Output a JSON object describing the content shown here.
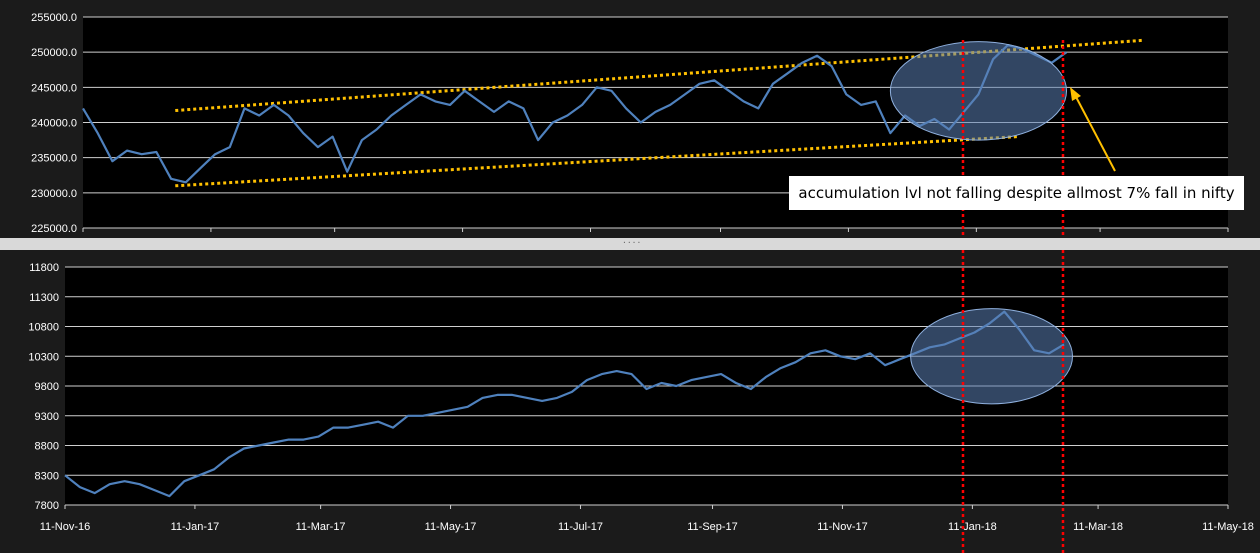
{
  "annotation": {
    "text": "accumulation lvl not falling despite  allmost 7% fall in nifty"
  },
  "splitter": {
    "grip": "····"
  },
  "colors": {
    "background": "#1b1b1b",
    "plot_bg": "#000000",
    "series_line": "#4f81bd",
    "trendline": "#ffc000",
    "marker_line": "#ff0000",
    "highlight": "#5b7fb5",
    "axis_text": "#ffffff"
  },
  "chart_data": [
    {
      "type": "line",
      "title": "",
      "xlabel": "",
      "ylabel": "",
      "x_ticks": [
        "11-Nov-16",
        "11-Jan-17",
        "11-Mar-17",
        "11-May-17",
        "11-Jul-17",
        "11-Sep-17",
        "11-Nov-17",
        "11-Jan-18",
        "11-Mar-18",
        "11-May-18"
      ],
      "y_ticks": [
        "225000.0",
        "230000.0",
        "235000.0",
        "240000.0",
        "245000.0",
        "250000.0",
        "255000.0"
      ],
      "ylim": [
        225000,
        255000
      ],
      "grid": "horizontal",
      "series": [
        {
          "x": [
            "2016-11-11",
            "2016-11-18",
            "2016-11-25",
            "2016-12-02",
            "2016-12-09",
            "2016-12-16",
            "2016-12-23",
            "2016-12-30",
            "2017-01-06",
            "2017-01-13",
            "2017-01-20",
            "2017-01-27",
            "2017-02-03",
            "2017-02-10",
            "2017-02-17",
            "2017-02-24",
            "2017-03-03",
            "2017-03-10",
            "2017-03-17",
            "2017-03-24",
            "2017-03-31",
            "2017-04-07",
            "2017-04-14",
            "2017-04-21",
            "2017-04-28",
            "2017-05-05",
            "2017-05-12",
            "2017-05-19",
            "2017-05-26",
            "2017-06-02",
            "2017-06-09",
            "2017-06-16",
            "2017-06-23",
            "2017-06-30",
            "2017-07-07",
            "2017-07-14",
            "2017-07-21",
            "2017-07-28",
            "2017-08-04",
            "2017-08-11",
            "2017-08-18",
            "2017-08-25",
            "2017-09-01",
            "2017-09-08",
            "2017-09-15",
            "2017-09-22",
            "2017-09-29",
            "2017-10-06",
            "2017-10-13",
            "2017-10-20",
            "2017-10-27",
            "2017-11-03",
            "2017-11-10",
            "2017-11-17",
            "2017-11-24",
            "2017-12-01",
            "2017-12-08",
            "2017-12-15",
            "2017-12-22",
            "2017-12-29",
            "2018-01-05",
            "2018-01-12",
            "2018-01-19",
            "2018-01-26",
            "2018-02-02",
            "2018-02-09",
            "2018-02-16",
            "2018-02-23"
          ],
          "values": [
            242000,
            238500,
            234500,
            236000,
            235500,
            235800,
            232000,
            231500,
            233500,
            235500,
            236500,
            242000,
            241000,
            242500,
            241000,
            238500,
            236500,
            238000,
            233000,
            237500,
            239000,
            241000,
            242500,
            244000,
            243000,
            242500,
            244500,
            243000,
            241500,
            243000,
            242000,
            237500,
            240000,
            241000,
            242500,
            245000,
            244500,
            242000,
            240000,
            241500,
            242500,
            244000,
            245500,
            246000,
            244500,
            243000,
            242000,
            245500,
            247000,
            248500,
            249500,
            248000,
            244000,
            242500,
            243000,
            238500,
            241000,
            239500,
            240500,
            239000,
            241500,
            244000,
            249000,
            251000,
            250500,
            249500,
            248500,
            250000
          ]
        }
      ],
      "trendlines": [
        {
          "x": [
            "2016-12-25",
            "2018-04-01"
          ],
          "y": [
            241700,
            251700
          ]
        },
        {
          "x": [
            "2016-12-25",
            "2018-01-31"
          ],
          "y": [
            231000,
            238000
          ]
        }
      ],
      "highlight_ellipse": {
        "center_x": "2018-01-12",
        "center_y": 244500,
        "half_width_days": 42,
        "half_height": 7000
      }
    },
    {
      "type": "line",
      "title": "",
      "xlabel": "",
      "ylabel": "",
      "x_ticks": [
        "11-Nov-16",
        "11-Jan-17",
        "11-Mar-17",
        "11-May-17",
        "11-Jul-17",
        "11-Sep-17",
        "11-Nov-17",
        "11-Jan-18",
        "11-Mar-18",
        "11-May-18"
      ],
      "y_ticks": [
        "7800",
        "8300",
        "8800",
        "9300",
        "9800",
        "10300",
        "10800",
        "11300",
        "11800"
      ],
      "ylim": [
        7800,
        11800
      ],
      "grid": "horizontal",
      "series": [
        {
          "x": [
            "2016-11-11",
            "2016-11-18",
            "2016-11-25",
            "2016-12-02",
            "2016-12-09",
            "2016-12-16",
            "2016-12-23",
            "2016-12-30",
            "2017-01-06",
            "2017-01-13",
            "2017-01-20",
            "2017-01-27",
            "2017-02-03",
            "2017-02-10",
            "2017-02-17",
            "2017-02-24",
            "2017-03-03",
            "2017-03-10",
            "2017-03-17",
            "2017-03-24",
            "2017-03-31",
            "2017-04-07",
            "2017-04-14",
            "2017-04-21",
            "2017-04-28",
            "2017-05-05",
            "2017-05-12",
            "2017-05-19",
            "2017-05-26",
            "2017-06-02",
            "2017-06-09",
            "2017-06-16",
            "2017-06-23",
            "2017-06-30",
            "2017-07-07",
            "2017-07-14",
            "2017-07-21",
            "2017-07-28",
            "2017-08-04",
            "2017-08-11",
            "2017-08-18",
            "2017-08-25",
            "2017-09-01",
            "2017-09-08",
            "2017-09-15",
            "2017-09-22",
            "2017-09-29",
            "2017-10-06",
            "2017-10-13",
            "2017-10-20",
            "2017-10-27",
            "2017-11-03",
            "2017-11-10",
            "2017-11-17",
            "2017-11-24",
            "2017-12-01",
            "2017-12-08",
            "2017-12-15",
            "2017-12-22",
            "2017-12-29",
            "2018-01-05",
            "2018-01-12",
            "2018-01-19",
            "2018-01-26",
            "2018-02-02",
            "2018-02-09",
            "2018-02-16",
            "2018-02-23"
          ],
          "values": [
            8300,
            8100,
            8000,
            8150,
            8200,
            8150,
            8050,
            7950,
            8200,
            8300,
            8400,
            8600,
            8750,
            8800,
            8850,
            8900,
            8900,
            8950,
            9100,
            9100,
            9150,
            9200,
            9100,
            9300,
            9300,
            9350,
            9400,
            9450,
            9600,
            9650,
            9650,
            9600,
            9550,
            9600,
            9700,
            9900,
            10000,
            10050,
            10000,
            9750,
            9850,
            9800,
            9900,
            9950,
            10000,
            9850,
            9750,
            9950,
            10100,
            10200,
            10350,
            10400,
            10300,
            10250,
            10350,
            10150,
            10250,
            10350,
            10450,
            10500,
            10600,
            10700,
            10850,
            11050,
            10750,
            10400,
            10350,
            10500
          ]
        }
      ],
      "highlight_ellipse": {
        "center_x": "2018-01-20",
        "center_y": 10300,
        "half_width_days": 38,
        "half_height": 800
      }
    }
  ]
}
